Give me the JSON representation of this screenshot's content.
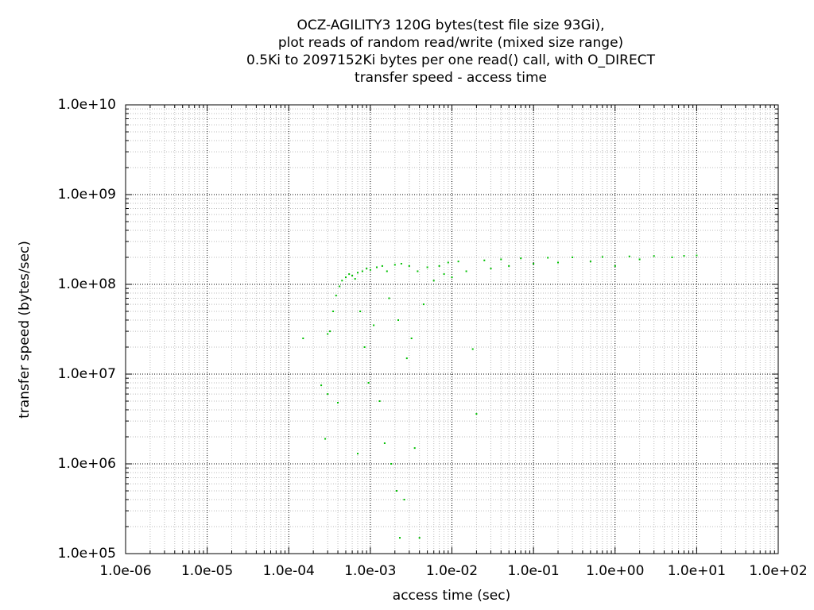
{
  "chart_data": {
    "type": "scatter",
    "title_lines": [
      "OCZ-AGILITY3 120G bytes(test file size 93Gi),",
      "plot reads of random read/write (mixed size range)",
      "0.5Ki to 2097152Ki bytes per one read() call, with O_DIRECT",
      "transfer speed - access time"
    ],
    "xlabel": "access time (sec)",
    "ylabel": "transfer speed (bytes/sec)",
    "x_scale": "log",
    "y_scale": "log",
    "xlim": [
      1e-06,
      100
    ],
    "ylim": [
      100000,
      10000000000
    ],
    "x_ticks": [
      "1.0e-06",
      "1.0e-05",
      "1.0e-04",
      "1.0e-03",
      "1.0e-02",
      "1.0e-01",
      "1.0e+00",
      "1.0e+01",
      "1.0e+02"
    ],
    "y_ticks": [
      "1.0e+05",
      "1.0e+06",
      "1.0e+07",
      "1.0e+08",
      "1.0e+09",
      "1.0e+10"
    ],
    "grid": true,
    "point_color": "#00c000",
    "series": [
      {
        "points": [
          [
            0.00015,
            25000000
          ],
          [
            0.00025,
            7500000
          ],
          [
            0.00028,
            1900000
          ],
          [
            0.0003,
            6000000
          ],
          [
            0.0003,
            28000000
          ],
          [
            0.00032,
            30000000
          ],
          [
            0.00035,
            50000000
          ],
          [
            0.00038,
            75000000
          ],
          [
            0.0004,
            4800000
          ],
          [
            0.00042,
            95000000
          ],
          [
            0.00045,
            110000000
          ],
          [
            0.0005,
            120000000
          ],
          [
            0.00055,
            130000000
          ],
          [
            0.0006,
            125000000
          ],
          [
            0.00065,
            115000000
          ],
          [
            0.0007,
            1300000
          ],
          [
            0.0007,
            135000000
          ],
          [
            0.00075,
            50000000
          ],
          [
            0.0008,
            140000000
          ],
          [
            0.00085,
            20000000
          ],
          [
            0.0009,
            150000000
          ],
          [
            0.00095,
            8000000
          ],
          [
            0.001,
            145000000
          ],
          [
            0.0011,
            35000000
          ],
          [
            0.0012,
            155000000
          ],
          [
            0.0013,
            5000000
          ],
          [
            0.0014,
            160000000
          ],
          [
            0.0015,
            1700000
          ],
          [
            0.0016,
            140000000
          ],
          [
            0.0017,
            70000000
          ],
          [
            0.0018,
            1000000
          ],
          [
            0.002,
            165000000
          ],
          [
            0.0021,
            500000
          ],
          [
            0.0022,
            40000000
          ],
          [
            0.0023,
            150000
          ],
          [
            0.0024,
            170000000
          ],
          [
            0.0026,
            400000
          ],
          [
            0.0028,
            15000000
          ],
          [
            0.003,
            160000000
          ],
          [
            0.0032,
            25000000
          ],
          [
            0.0035,
            1500000
          ],
          [
            0.0038,
            140000000
          ],
          [
            0.004,
            150000
          ],
          [
            0.0045,
            60000000
          ],
          [
            0.005,
            155000000
          ],
          [
            0.006,
            110000000
          ],
          [
            0.007,
            160000000
          ],
          [
            0.008,
            130000000
          ],
          [
            0.009,
            175000000
          ],
          [
            0.01,
            120000000
          ],
          [
            0.012,
            180000000
          ],
          [
            0.015,
            140000000
          ],
          [
            0.018,
            19000000
          ],
          [
            0.02,
            3600000
          ],
          [
            0.025,
            185000000
          ],
          [
            0.03,
            150000000
          ],
          [
            0.04,
            190000000
          ],
          [
            0.05,
            160000000
          ],
          [
            0.07,
            195000000
          ],
          [
            0.1,
            170000000
          ],
          [
            0.15,
            198000000
          ],
          [
            0.2,
            175000000
          ],
          [
            0.3,
            200000000
          ],
          [
            0.5,
            180000000
          ],
          [
            0.7,
            202000000
          ],
          [
            1,
            160000000
          ],
          [
            1.5,
            205000000
          ],
          [
            2,
            190000000
          ],
          [
            3,
            207000000
          ],
          [
            5,
            200000000
          ],
          [
            7,
            208000000
          ],
          [
            10,
            210000000
          ]
        ]
      }
    ]
  }
}
